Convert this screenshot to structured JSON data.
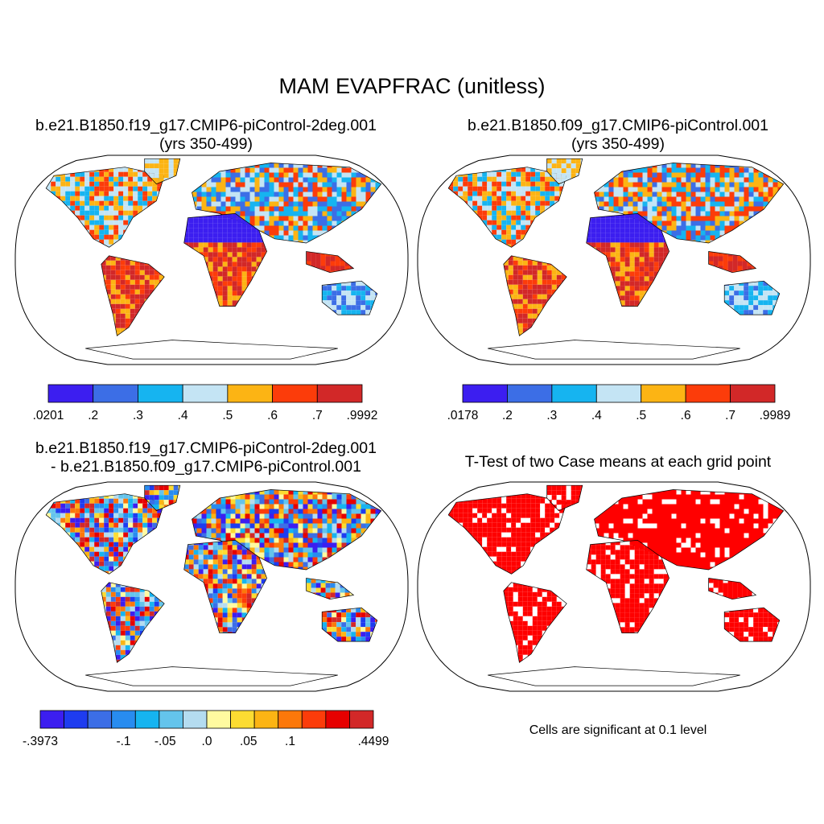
{
  "title": "MAM EVAPFRAC (unitless)",
  "panels": [
    {
      "id": "case1",
      "title_line1": "b.e21.B1850.f19_g17.CMIP6-piControl-2deg.001",
      "title_line2": "(yrs 350-499)"
    },
    {
      "id": "case2",
      "title_line1": "b.e21.B1850.f09_g17.CMIP6-piControl.001",
      "title_line2": "(yrs 350-499)"
    },
    {
      "id": "diff",
      "title_line1": "b.e21.B1850.f19_g17.CMIP6-piControl-2deg.001",
      "title_line2": "- b.e21.B1850.f09_g17.CMIP6-piControl.001"
    },
    {
      "id": "ttest",
      "title_line1": "T-Test of two Case means at each grid point"
    }
  ],
  "significance_note": "Cells are significant at 0.1 level",
  "chart_data": [
    {
      "type": "heatmap",
      "title": "b.e21.B1850.f19_g17.CMIP6-piControl-2deg.001 (yrs 350-499)",
      "projection": "Robinson",
      "colorbar": {
        "labels": [
          ".0201",
          ".2",
          ".3",
          ".4",
          ".5",
          ".6",
          ".7",
          ".9992"
        ],
        "colors": [
          "#3c1ef0",
          "#3c6ee6",
          "#16b4f0",
          "#c4e4f4",
          "#fcb414",
          "#fc3c0a",
          "#d22828"
        ]
      }
    },
    {
      "type": "heatmap",
      "title": "b.e21.B1850.f09_g17.CMIP6-piControl.001 (yrs 350-499)",
      "projection": "Robinson",
      "colorbar": {
        "labels": [
          ".0178",
          ".2",
          ".3",
          ".4",
          ".5",
          ".6",
          ".7",
          ".9989"
        ],
        "colors": [
          "#3c1ef0",
          "#3c6ee6",
          "#16b4f0",
          "#c4e4f4",
          "#fcb414",
          "#fc3c0a",
          "#d22828"
        ]
      }
    },
    {
      "type": "heatmap",
      "title": "b.e21.B1850.f19_g17.CMIP6-piControl-2deg.001 - b.e21.B1850.f09_g17.CMIP6-piControl.001",
      "projection": "Robinson",
      "colorbar": {
        "labels": [
          "-.3973",
          "",
          "-.1",
          "-.05",
          ".0",
          ".05",
          ".1",
          "",
          ".4499"
        ],
        "colors": [
          "#3c1ef0",
          "#1e3cf0",
          "#3c6ee6",
          "#288cf0",
          "#16b4f0",
          "#64c4ec",
          "#b4dcf0",
          "#fffaa0",
          "#fcdc32",
          "#fcb414",
          "#fc780a",
          "#fc3c0a",
          "#e60000",
          "#d22828"
        ]
      }
    },
    {
      "type": "heatmap",
      "title": "T-Test of two Case means at each grid point",
      "projection": "Robinson",
      "significance_color": "#ff0000",
      "significance_level": 0.1
    }
  ]
}
